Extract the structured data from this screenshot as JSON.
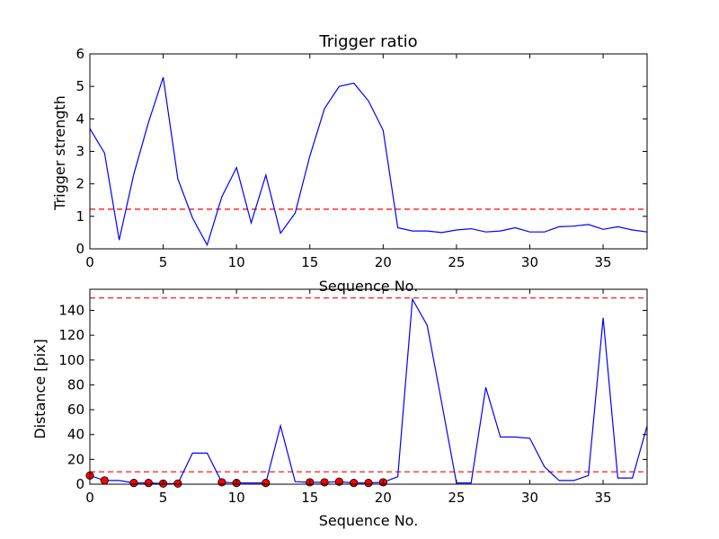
{
  "chart_data": [
    {
      "type": "line",
      "title": "Trigger ratio",
      "xlabel": "Sequence No.",
      "ylabel": "Trigger strength",
      "xlim": [
        0,
        38
      ],
      "ylim": [
        0,
        6
      ],
      "xticks": [
        0,
        5,
        10,
        15,
        20,
        25,
        30,
        35
      ],
      "yticks": [
        0,
        1,
        2,
        3,
        4,
        5,
        6
      ],
      "grid": false,
      "line_color": "#0000ff",
      "threshold_color": "#ff0000",
      "thresholds": [
        1.22
      ],
      "series": [
        {
          "x": [
            0,
            1,
            2,
            3,
            4,
            5,
            6,
            7,
            8,
            9,
            10,
            11,
            12,
            13,
            14,
            15,
            16,
            17,
            18,
            19,
            20,
            21,
            22,
            23,
            24,
            25,
            26,
            27,
            28,
            29,
            30,
            31,
            32,
            33,
            34,
            35,
            36,
            37,
            38
          ],
          "y": [
            3.7,
            2.95,
            0.27,
            2.3,
            3.9,
            5.28,
            2.15,
            0.95,
            0.12,
            1.6,
            2.5,
            0.8,
            2.27,
            0.48,
            1.1,
            2.85,
            4.32,
            5.0,
            5.1,
            4.55,
            3.65,
            0.65,
            0.55,
            0.55,
            0.5,
            0.58,
            0.62,
            0.52,
            0.55,
            0.65,
            0.52,
            0.52,
            0.68,
            0.7,
            0.75,
            0.6,
            0.68,
            0.58,
            0.52
          ]
        }
      ]
    },
    {
      "type": "line",
      "title": "",
      "xlabel": "Sequence No.",
      "ylabel": "Distance [pix]",
      "xlim": [
        0,
        38
      ],
      "ylim": [
        0,
        157
      ],
      "xticks": [
        0,
        5,
        10,
        15,
        20,
        25,
        30,
        35
      ],
      "yticks": [
        0,
        20,
        40,
        60,
        80,
        100,
        120,
        140
      ],
      "grid": false,
      "line_color": "#0000ff",
      "threshold_color": "#ff0000",
      "marker_color": "#ff0000",
      "thresholds": [
        10,
        150
      ],
      "series": [
        {
          "x": [
            0,
            1,
            2,
            3,
            4,
            5,
            6,
            7,
            8,
            9,
            10,
            11,
            12,
            13,
            14,
            15,
            16,
            17,
            18,
            19,
            20,
            21,
            22,
            23,
            24,
            25,
            26,
            27,
            28,
            29,
            30,
            31,
            32,
            33,
            34,
            35,
            36,
            37,
            38
          ],
          "y": [
            7,
            3,
            3,
            1,
            1,
            0.5,
            0.5,
            25,
            25,
            1.5,
            1,
            1,
            1,
            47,
            2,
            1.5,
            1.5,
            2,
            1,
            1,
            1.5,
            6,
            149,
            128,
            65,
            1,
            1,
            78,
            38,
            38,
            37,
            14,
            3,
            3,
            7,
            134,
            5,
            5,
            47
          ]
        }
      ],
      "markers": {
        "x": [
          0,
          1,
          3,
          4,
          5,
          6,
          9,
          10,
          12,
          15,
          16,
          17,
          18,
          19,
          20
        ],
        "y": [
          7,
          3,
          1,
          1,
          0.5,
          0.5,
          1.5,
          1,
          1,
          1.5,
          1.5,
          2,
          1,
          1,
          1.5
        ]
      }
    }
  ]
}
